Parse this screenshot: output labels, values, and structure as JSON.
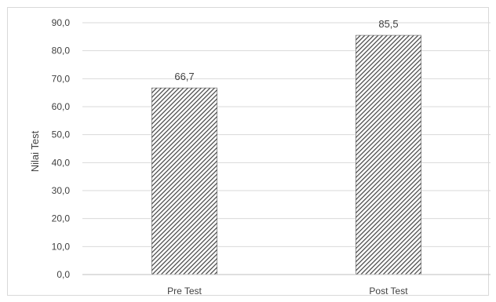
{
  "chart_data": {
    "type": "bar",
    "categories": [
      "Pre Test",
      "Post Test"
    ],
    "values": [
      66.7,
      85.5
    ],
    "value_labels": [
      "66,7",
      "85,5"
    ],
    "ylabel": "Nilai Test",
    "ylim": [
      0,
      90
    ],
    "y_ticks": [
      0,
      10,
      20,
      30,
      40,
      50,
      60,
      70,
      80,
      90
    ],
    "y_tick_labels": [
      "0,0",
      "10,0",
      "20,0",
      "30,0",
      "40,0",
      "50,0",
      "60,0",
      "70,0",
      "80,0",
      "90,0"
    ],
    "grid": true,
    "legend": "none",
    "bar_fill": "diagonal-hatch",
    "colors": {
      "bar_hatch": "#404040",
      "bar_background": "#ffffff",
      "gridline": "#d9d9d9",
      "axis": "#bfbfbf",
      "text": "#404040"
    }
  }
}
